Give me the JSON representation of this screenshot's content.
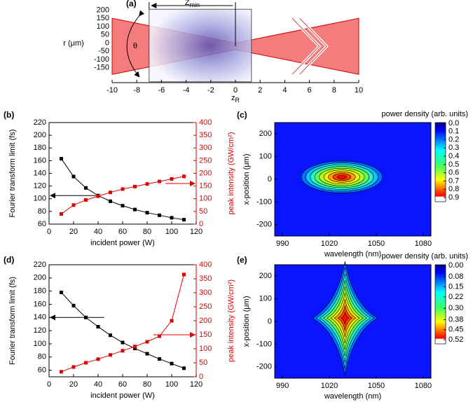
{
  "chart_data": [
    {
      "type": "schematic",
      "panel_label": "(a)",
      "ylabel": "r (μm)",
      "xlabel": {
        "main": "z",
        "sub": "R"
      },
      "zmin_label": {
        "main": "Z",
        "sub": "min"
      },
      "angle_label": "θ",
      "xlim": [
        -10,
        10
      ],
      "xticks": [
        -10,
        -8,
        -6,
        -4,
        -2,
        0,
        2,
        4,
        6,
        8,
        10
      ],
      "ylim": [
        -240,
        210
      ],
      "yticks": [
        -150,
        -100,
        -50,
        0,
        50,
        100,
        150,
        200
      ]
    },
    {
      "type": "line",
      "panel_label": "(b)",
      "xlabel": "incident power (W)",
      "ylabel": "Fourier transform limit (fs)",
      "y2label": "peak intensity (GW/cm²)",
      "x": [
        10,
        20,
        30,
        40,
        50,
        60,
        70,
        80,
        90,
        100,
        110
      ],
      "series": [
        {
          "color": "#000000",
          "values": [
            163,
            135,
            117,
            105,
            96,
            89,
            83,
            78,
            74,
            70,
            67
          ]
        },
        {
          "color": "#e00000",
          "axis": "y2",
          "values": [
            40,
            75,
            95,
            110,
            125,
            138,
            148,
            158,
            168,
            178,
            188
          ]
        }
      ],
      "xlim": [
        0,
        120
      ],
      "xticks": [
        0,
        20,
        40,
        60,
        80,
        100,
        120
      ],
      "ylim": [
        60,
        220
      ],
      "yticks": [
        60,
        80,
        100,
        120,
        140,
        160,
        180,
        200,
        220
      ],
      "y2lim": [
        0,
        400
      ],
      "y2ticks": [
        0,
        50,
        100,
        150,
        200,
        250,
        300,
        350,
        400
      ]
    },
    {
      "type": "heatmap",
      "panel_label": "(c)",
      "xlabel": "wavelength (nm)",
      "ylabel": "x-position (μm)",
      "colorbar_title": "power density (arb. units)",
      "xlim": [
        985,
        1085
      ],
      "xticks": [
        990,
        1020,
        1050,
        1080
      ],
      "ylim": [
        -250,
        250
      ],
      "yticks": [
        -200,
        -100,
        0,
        100,
        200
      ],
      "clim": [
        0,
        0.9
      ],
      "cticks": [
        {
          "value": 0,
          "label": "0.0"
        },
        0.1,
        0.2,
        0.3,
        0.4,
        0.5,
        0.6,
        0.7,
        0.8,
        0.9
      ]
    },
    {
      "type": "line",
      "panel_label": "(d)",
      "xlabel": "incident power (W)",
      "ylabel": "Fourier transform limit (fs)",
      "y2label": "peak intensity (GW/cm²)",
      "x": [
        10,
        20,
        30,
        40,
        50,
        60,
        70,
        80,
        90,
        100,
        110
      ],
      "series": [
        {
          "color": "#000000",
          "values": [
            178,
            158,
            140,
            126,
            113,
            102,
            93,
            85,
            77,
            70,
            63
          ]
        },
        {
          "color": "#e00000",
          "axis": "y2",
          "values": [
            18,
            35,
            50,
            63,
            78,
            93,
            108,
            125,
            145,
            200,
            365
          ]
        }
      ],
      "xlim": [
        0,
        120
      ],
      "xticks": [
        0,
        20,
        40,
        60,
        80,
        100,
        120
      ],
      "ylim": [
        50,
        220
      ],
      "yticks": [
        60,
        80,
        100,
        120,
        140,
        160,
        180,
        200,
        220
      ],
      "y2lim": [
        0,
        400
      ],
      "y2ticks": [
        0,
        50,
        100,
        150,
        200,
        250,
        300,
        350,
        400
      ]
    },
    {
      "type": "heatmap",
      "panel_label": "(e)",
      "xlabel": "wavelength (nm)",
      "ylabel": "x-position (μm)",
      "colorbar_title": "power density (arb. units)",
      "xlim": [
        985,
        1085
      ],
      "xticks": [
        990,
        1020,
        1050,
        1080
      ],
      "ylim": [
        -250,
        250
      ],
      "yticks": [
        -200,
        -100,
        0,
        100,
        200
      ],
      "clim": [
        0,
        0.52
      ],
      "cticks": [
        {
          "value": 0,
          "label": "0.00"
        },
        0.08,
        0.15,
        0.22,
        {
          "value": 0.3,
          "label": "0.30"
        },
        0.38,
        0.45,
        0.52
      ]
    }
  ]
}
